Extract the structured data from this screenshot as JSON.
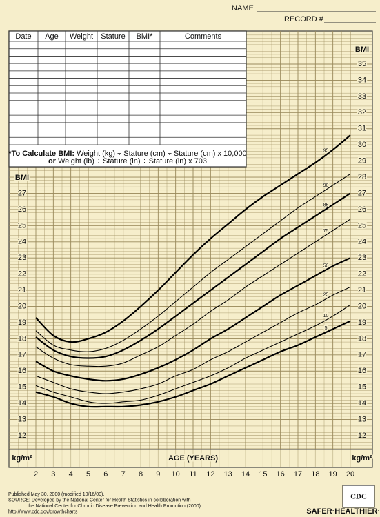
{
  "header": {
    "name_label": "NAME",
    "record_label": "RECORD #"
  },
  "table": {
    "columns": [
      "Date",
      "Age",
      "Weight",
      "Stature",
      "BMI*",
      "Comments"
    ],
    "note": [
      {
        "bold": "*To Calculate BMI:",
        "text": "Weight (kg) ÷ Stature (cm) ÷ Stature (cm) x 10,000"
      },
      {
        "bold": "or",
        "text": "Weight (lb) ÷ Stature (in) ÷ Stature (in) x 703"
      }
    ]
  },
  "chart_data": {
    "type": "line",
    "x_label": "AGE (YEARS)",
    "y_label": "BMI",
    "y_unit": "kg/m²",
    "x": [
      2,
      3,
      4,
      5,
      6,
      7,
      8,
      9,
      10,
      11,
      12,
      13,
      14,
      15,
      16,
      17,
      18,
      19,
      20
    ],
    "xlim": [
      2,
      20
    ],
    "xticks": [
      2,
      3,
      4,
      5,
      6,
      7,
      8,
      9,
      10,
      11,
      12,
      13,
      14,
      15,
      16,
      17,
      18,
      19,
      20
    ],
    "ylim": [
      12,
      35
    ],
    "yticks": [
      12,
      13,
      14,
      15,
      16,
      17,
      18,
      19,
      20,
      21,
      22,
      23,
      24,
      25,
      26,
      27,
      28,
      29,
      30,
      31,
      32,
      33,
      34,
      35
    ],
    "grid": true,
    "series": [
      {
        "name": "95",
        "color": "#000000",
        "width": 2,
        "values": [
          19.3,
          18.2,
          17.8,
          18.0,
          18.4,
          19.1,
          20.0,
          21.0,
          22.1,
          23.2,
          24.2,
          25.1,
          26.0,
          26.8,
          27.5,
          28.2,
          28.9,
          29.7,
          30.6
        ]
      },
      {
        "name": "90",
        "color": "#000000",
        "width": 1,
        "values": [
          18.5,
          17.6,
          17.3,
          17.2,
          17.4,
          17.9,
          18.6,
          19.4,
          20.3,
          21.2,
          22.1,
          22.9,
          23.7,
          24.5,
          25.3,
          26.1,
          26.8,
          27.5,
          28.2
        ]
      },
      {
        "name": "85",
        "color": "#000000",
        "width": 2,
        "values": [
          18.1,
          17.3,
          16.9,
          16.8,
          16.9,
          17.3,
          17.9,
          18.6,
          19.4,
          20.2,
          21.0,
          21.8,
          22.6,
          23.4,
          24.2,
          24.9,
          25.6,
          26.3,
          27.0
        ]
      },
      {
        "name": "75",
        "color": "#000000",
        "width": 1,
        "values": [
          17.5,
          16.8,
          16.4,
          16.3,
          16.3,
          16.5,
          17.0,
          17.5,
          18.2,
          18.9,
          19.7,
          20.4,
          21.2,
          21.9,
          22.6,
          23.3,
          24.0,
          24.7,
          25.4
        ]
      },
      {
        "name": "50",
        "color": "#000000",
        "width": 2,
        "values": [
          16.6,
          16.0,
          15.7,
          15.5,
          15.4,
          15.5,
          15.8,
          16.2,
          16.7,
          17.3,
          18.0,
          18.6,
          19.3,
          20.0,
          20.7,
          21.3,
          21.9,
          22.5,
          23.0
        ]
      },
      {
        "name": "25",
        "color": "#000000",
        "width": 1,
        "values": [
          15.7,
          15.3,
          14.9,
          14.7,
          14.6,
          14.7,
          14.9,
          15.2,
          15.7,
          16.1,
          16.7,
          17.2,
          17.8,
          18.4,
          19.0,
          19.6,
          20.1,
          20.7,
          21.2
        ]
      },
      {
        "name": "10",
        "color": "#000000",
        "width": 1,
        "values": [
          15.1,
          14.7,
          14.4,
          14.1,
          14.0,
          14.1,
          14.2,
          14.5,
          14.9,
          15.3,
          15.7,
          16.2,
          16.8,
          17.3,
          17.8,
          18.3,
          18.8,
          19.4,
          20.1
        ]
      },
      {
        "name": "5",
        "color": "#000000",
        "width": 2,
        "values": [
          14.7,
          14.4,
          14.0,
          13.8,
          13.8,
          13.8,
          13.9,
          14.1,
          14.4,
          14.8,
          15.2,
          15.7,
          16.2,
          16.7,
          17.2,
          17.6,
          18.1,
          18.6,
          19.1
        ]
      }
    ]
  },
  "footer": {
    "lines": [
      "Published May 30, 2000 (modified 10/16/00).",
      "SOURCE: Developed by the National Center for Health Statistics in collaboration with",
      "the National Center for Chronic Disease Prevention and Health Promotion (2000).",
      "http://www.cdc.gov/growthcharts"
    ],
    "logo": "CDC",
    "logo_tagline": "SAFER·HEALTHIER·PEOPLE"
  }
}
